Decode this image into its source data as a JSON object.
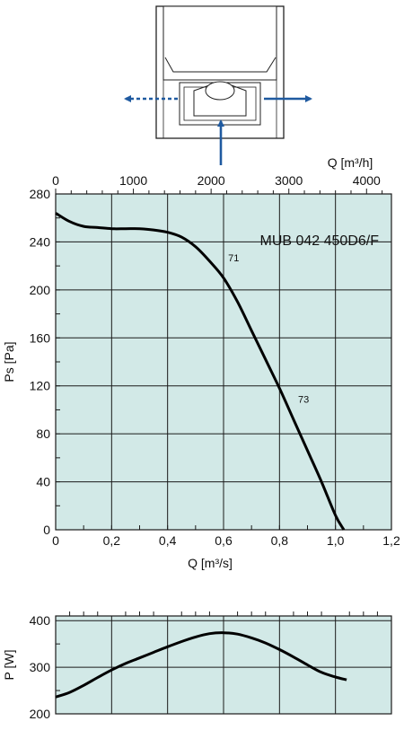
{
  "colors": {
    "plot_bg": "#d2e9e7",
    "grid": "#1a1a1a",
    "curve": "#000000",
    "arrow": "#1f5aa0"
  },
  "schematic": {
    "icon": "fan-unit-airflow-schematic"
  },
  "chart_data": [
    {
      "type": "line",
      "title": "MUB 042 450D6/F",
      "xlabel": "Q [m³/s]",
      "ylabel": "Ps [Pa]",
      "xlim": [
        0,
        1.2
      ],
      "ylim": [
        0,
        280
      ],
      "x_ticks": [
        "0",
        "0,2",
        "0,4",
        "0,6",
        "0,8",
        "1,0",
        "1,2"
      ],
      "y_ticks": [
        "0",
        "40",
        "80",
        "120",
        "160",
        "200",
        "240",
        "280"
      ],
      "top_axis": {
        "label": "Q [m³/h]",
        "ticks": [
          "0",
          "1000",
          "2000",
          "3000",
          "4000"
        ],
        "tick_values": [
          0,
          1000,
          2000,
          3000,
          4000
        ]
      },
      "grid": true,
      "annotations": [
        {
          "text": "71",
          "x": 0.61,
          "y": 221
        },
        {
          "text": "73",
          "x": 0.86,
          "y": 103
        }
      ],
      "series": [
        {
          "x": [
            0,
            0.05,
            0.1,
            0.15,
            0.2,
            0.25,
            0.3,
            0.35,
            0.4,
            0.45,
            0.5,
            0.55,
            0.6,
            0.65,
            0.7,
            0.75,
            0.8,
            0.85,
            0.9,
            0.95,
            1.0,
            1.03
          ],
          "y": [
            264,
            257,
            253,
            252,
            251,
            251,
            251,
            250,
            248,
            244,
            236,
            224,
            210,
            190,
            166,
            142,
            118,
            92,
            66,
            40,
            12,
            0
          ]
        }
      ]
    },
    {
      "type": "line",
      "xlabel": "",
      "ylabel": "P [W]",
      "xlim": [
        0,
        1.2
      ],
      "ylim": [
        200,
        410
      ],
      "y_ticks": [
        "200",
        "300",
        "400"
      ],
      "grid": true,
      "series": [
        {
          "x": [
            0,
            0.05,
            0.1,
            0.15,
            0.2,
            0.25,
            0.3,
            0.35,
            0.4,
            0.45,
            0.5,
            0.55,
            0.6,
            0.65,
            0.7,
            0.75,
            0.8,
            0.85,
            0.9,
            0.95,
            1.0,
            1.04
          ],
          "y": [
            236,
            246,
            261,
            278,
            294,
            308,
            320,
            332,
            344,
            355,
            365,
            372,
            374,
            371,
            363,
            352,
            338,
            322,
            305,
            289,
            279,
            273
          ]
        }
      ]
    }
  ]
}
